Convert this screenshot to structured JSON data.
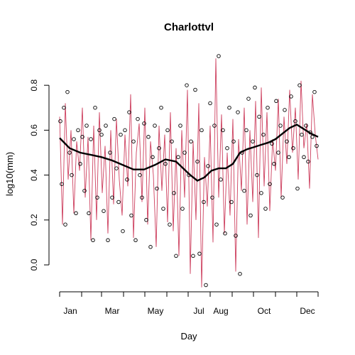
{
  "chart_data": {
    "type": "line",
    "title": "Charlottvl",
    "xlabel": "Day",
    "ylabel": "log10(mm)",
    "xlim": [
      1,
      365
    ],
    "ylim": [
      -0.12,
      0.87
    ],
    "month_ticks": [
      1,
      32,
      60,
      91,
      121,
      152,
      182,
      213,
      244,
      274,
      305,
      335,
      365
    ],
    "x_tick_labels": [
      {
        "x": 16,
        "label": "Jan"
      },
      {
        "x": 75,
        "label": "Mar"
      },
      {
        "x": 136,
        "label": "May"
      },
      {
        "x": 197,
        "label": "Jul"
      },
      {
        "x": 228,
        "label": "Aug"
      },
      {
        "x": 289,
        "label": "Oct"
      },
      {
        "x": 350,
        "label": "Dec"
      }
    ],
    "y_ticks": [
      0.0,
      0.2,
      0.4,
      0.6,
      0.8
    ],
    "y_tick_labels": [
      "0.0",
      "0.2",
      "0.4",
      "0.6",
      "0.8"
    ],
    "colors": {
      "daily_line": "#cd3f5e",
      "smooth_line": "#000000",
      "points": "#000000"
    },
    "series": [
      {
        "style": "thin-line",
        "x": [
          1,
          5,
          9,
          13,
          17,
          21,
          25,
          29,
          33,
          37,
          41,
          45,
          49,
          53,
          57,
          61,
          65,
          69,
          73,
          77,
          81,
          85,
          89,
          93,
          97,
          101,
          105,
          109,
          113,
          117,
          121,
          125,
          129,
          133,
          137,
          141,
          145,
          149,
          153,
          157,
          161,
          165,
          169,
          173,
          177,
          181,
          185,
          189,
          193,
          197,
          201,
          205,
          209,
          213,
          217,
          221,
          225,
          229,
          233,
          237,
          241,
          245,
          249,
          253,
          257,
          261,
          265,
          269,
          273,
          277,
          281,
          285,
          289,
          293,
          297,
          301,
          305,
          309,
          313,
          317,
          321,
          325,
          329,
          333,
          337,
          341,
          345,
          349,
          353,
          357,
          361,
          365
        ],
        "y": [
          0.66,
          0.18,
          0.72,
          0.38,
          0.6,
          0.23,
          0.55,
          0.42,
          0.7,
          0.3,
          0.57,
          0.11,
          0.62,
          0.2,
          0.68,
          0.32,
          0.53,
          0.14,
          0.6,
          0.27,
          0.65,
          0.38,
          0.22,
          0.58,
          0.35,
          0.76,
          0.12,
          0.5,
          0.63,
          0.28,
          0.7,
          0.18,
          0.55,
          0.4,
          0.08,
          0.62,
          0.33,
          0.58,
          0.19,
          0.68,
          0.15,
          0.52,
          0.04,
          0.6,
          0.3,
          0.78,
          -0.04,
          0.55,
          0.2,
          0.72,
          -0.1,
          0.48,
          0.26,
          0.62,
          0.1,
          0.92,
          0.3,
          0.67,
          0.14,
          0.5,
          0.22,
          0.65,
          -0.03,
          0.56,
          0.33,
          0.7,
          0.18,
          0.6,
          0.28,
          0.73,
          0.12,
          0.79,
          0.35,
          0.68,
          0.24,
          0.56,
          0.42,
          0.74,
          0.3,
          0.66,
          0.45,
          0.78,
          0.5,
          0.7,
          0.38,
          0.82,
          0.52,
          0.63,
          0.34,
          0.76,
          0.58,
          0.47
        ]
      },
      {
        "style": "points",
        "x": [
          2,
          4,
          7,
          9,
          12,
          15,
          18,
          21,
          24,
          27,
          30,
          33,
          36,
          39,
          42,
          45,
          48,
          51,
          54,
          57,
          60,
          63,
          66,
          69,
          72,
          75,
          78,
          81,
          84,
          87,
          90,
          93,
          96,
          99,
          102,
          105,
          108,
          111,
          114,
          117,
          120,
          123,
          126,
          129,
          132,
          135,
          138,
          141,
          144,
          147,
          150,
          153,
          156,
          159,
          162,
          165,
          168,
          171,
          174,
          177,
          180,
          183,
          186,
          189,
          192,
          195,
          198,
          201,
          204,
          207,
          210,
          213,
          216,
          219,
          222,
          225,
          228,
          231,
          234,
          237,
          240,
          243,
          246,
          249,
          252,
          255,
          258,
          261,
          264,
          267,
          270,
          273,
          276,
          279,
          282,
          285,
          288,
          291,
          294,
          297,
          300,
          303,
          306,
          309,
          312,
          315,
          318,
          321,
          324,
          327,
          330,
          333,
          336,
          339,
          342,
          345,
          348,
          351,
          354,
          357,
          360,
          363
        ],
        "y": [
          0.64,
          0.36,
          0.7,
          0.18,
          0.77,
          0.5,
          0.4,
          0.56,
          0.23,
          0.6,
          0.45,
          0.57,
          0.33,
          0.62,
          0.23,
          0.56,
          0.11,
          0.7,
          0.3,
          0.6,
          0.58,
          0.24,
          0.62,
          0.11,
          0.5,
          0.3,
          0.65,
          0.43,
          0.28,
          0.58,
          0.15,
          0.6,
          0.38,
          0.68,
          0.22,
          0.55,
          0.11,
          0.65,
          0.4,
          0.3,
          0.63,
          0.2,
          0.57,
          0.08,
          0.48,
          0.62,
          0.34,
          0.52,
          0.7,
          0.25,
          0.45,
          0.6,
          0.18,
          0.55,
          0.32,
          0.04,
          0.48,
          0.62,
          0.25,
          0.5,
          0.8,
          0.4,
          0.55,
          0.04,
          0.78,
          0.46,
          0.05,
          0.6,
          0.28,
          -0.09,
          0.44,
          0.72,
          0.3,
          0.62,
          0.18,
          0.93,
          0.38,
          0.6,
          0.14,
          0.52,
          0.7,
          0.28,
          0.55,
          0.13,
          0.68,
          -0.04,
          0.5,
          0.33,
          0.6,
          0.74,
          0.22,
          0.55,
          0.79,
          0.4,
          0.66,
          0.32,
          0.58,
          0.25,
          0.7,
          0.36,
          0.54,
          0.45,
          0.73,
          0.5,
          0.62,
          0.3,
          0.69,
          0.55,
          0.48,
          0.75,
          0.52,
          0.64,
          0.34,
          0.8,
          0.58,
          0.48,
          0.62,
          0.46,
          0.59,
          0.57,
          0.77,
          0.53
        ]
      },
      {
        "style": "thick-line",
        "x": [
          1,
          15,
          30,
          45,
          60,
          75,
          90,
          105,
          120,
          135,
          150,
          165,
          175,
          185,
          195,
          205,
          215,
          225,
          235,
          245,
          255,
          265,
          275,
          285,
          295,
          305,
          315,
          325,
          335,
          345,
          355,
          365
        ],
        "y": [
          0.565,
          0.52,
          0.5,
          0.49,
          0.48,
          0.465,
          0.445,
          0.425,
          0.425,
          0.445,
          0.47,
          0.46,
          0.43,
          0.4,
          0.375,
          0.39,
          0.42,
          0.43,
          0.43,
          0.45,
          0.5,
          0.515,
          0.525,
          0.535,
          0.545,
          0.56,
          0.585,
          0.61,
          0.625,
          0.605,
          0.585,
          0.57
        ]
      }
    ]
  }
}
